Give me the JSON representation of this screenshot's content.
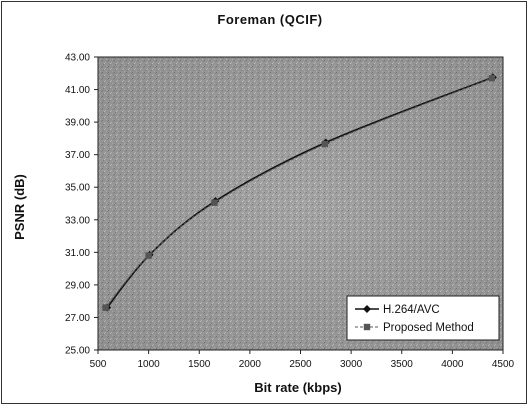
{
  "chart_data": {
    "type": "line",
    "title": "Foreman (QCIF)",
    "xlabel": "Bit rate (kbps)",
    "ylabel": "PSNR (dB)",
    "xlim": [
      500,
      4500
    ],
    "ylim": [
      25.0,
      43.0
    ],
    "x_ticks": [
      "500",
      "1000",
      "1500",
      "2000",
      "2500",
      "3000",
      "3500",
      "4000",
      "4500"
    ],
    "y_ticks": [
      "25.00",
      "27.00",
      "29.00",
      "31.00",
      "33.00",
      "35.00",
      "37.00",
      "39.00",
      "41.00",
      "43.00"
    ],
    "grid": false,
    "legend_position": "bottom-right",
    "series": [
      {
        "name": "H.264/AVC",
        "marker": "diamond",
        "color": "#111111",
        "points": [
          [
            590,
            27.6
          ],
          [
            1010,
            30.85
          ],
          [
            1660,
            34.15
          ],
          [
            2750,
            37.75
          ],
          [
            4400,
            41.75
          ]
        ]
      },
      {
        "name": "Proposed Method",
        "marker": "square",
        "color": "#555555",
        "points": [
          [
            575,
            27.6
          ],
          [
            1000,
            30.8
          ],
          [
            1650,
            34.05
          ],
          [
            2740,
            37.65
          ],
          [
            4390,
            41.7
          ]
        ]
      }
    ],
    "colors": {
      "plot_background": "#9a9a9a",
      "axis": "#222222"
    }
  }
}
